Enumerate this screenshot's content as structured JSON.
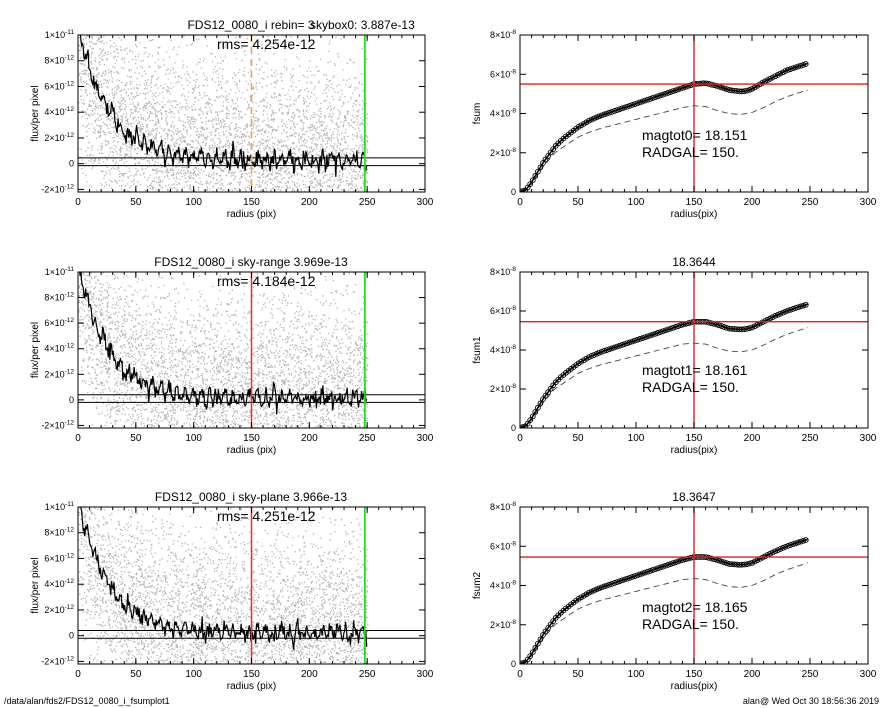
{
  "footer": {
    "path": "/data/alan/fds2/FDS12_0080_i_fsumplot1",
    "stamp": "alan@  Wed Oct 30 18:56:36 2019"
  },
  "colors": {
    "scatter": "#a8a8a8",
    "profile": "#000000",
    "dashed_marker": "#f0a050",
    "radius_marker": "#e03030",
    "outer_marker": "#22dd22",
    "crosshair": "#dd2222",
    "dashed_curve": "#444444"
  },
  "chart_data": [
    {
      "panel": "profile-1",
      "type": "scatter",
      "title_left": "FDS12_0080_i rebin= 3",
      "title_right": "skybox0:  3.887e-13",
      "annotation": "rms= 4.254e-12",
      "xlabel": "radius (pix)",
      "ylabel": "flux/per pixel",
      "xlim": [
        0,
        300
      ],
      "ylim": [
        -2.2e-12,
        1e-11
      ],
      "x_ticks": [
        "0",
        "50",
        "100",
        "150",
        "200",
        "250",
        "300"
      ],
      "y_ticks": [
        {
          "v": -2e-12,
          "m": "-2×10",
          "e": "-12"
        },
        {
          "v": 0,
          "m": "0",
          "e": ""
        },
        {
          "v": 2e-12,
          "m": "2×10",
          "e": "-12"
        },
        {
          "v": 4e-12,
          "m": "4×10",
          "e": "-12"
        },
        {
          "v": 6e-12,
          "m": "6×10",
          "e": "-12"
        },
        {
          "v": 8e-12,
          "m": "8×10",
          "e": "-12"
        },
        {
          "v": 1e-11,
          "m": "1×10",
          "e": "-11"
        }
      ],
      "horizontal_lines": [
        4.5e-13,
        -1.5e-13
      ],
      "marker_radius": 150,
      "marker_style": "dashed",
      "outer_radius": 248,
      "profile": {
        "amplitude": 1.05e-11,
        "scale": 26,
        "floor": 3e-13,
        "x_max": 250
      }
    },
    {
      "panel": "growth-1",
      "type": "line",
      "title_left": "",
      "title_right": "",
      "xlabel": "radius(pix)",
      "ylabel": "fsum",
      "xlim": [
        0,
        300
      ],
      "ylim": [
        0,
        8e-08
      ],
      "x_ticks": [
        "0",
        "50",
        "100",
        "150",
        "200",
        "250",
        "300"
      ],
      "y_ticks": [
        {
          "v": 0,
          "m": "0",
          "e": ""
        },
        {
          "v": 2e-08,
          "m": "2×10",
          "e": "-8"
        },
        {
          "v": 4e-08,
          "m": "4×10",
          "e": "-8"
        },
        {
          "v": 6e-08,
          "m": "6×10",
          "e": "-8"
        },
        {
          "v": 8e-08,
          "m": "8×10",
          "e": "-8"
        }
      ],
      "cross_x": 150,
      "cross_y": 5.5e-08,
      "curve": {
        "x": [
          0,
          5,
          10,
          15,
          20,
          25,
          30,
          35,
          40,
          50,
          60,
          70,
          80,
          90,
          100,
          110,
          120,
          130,
          140,
          150,
          160,
          170,
          180,
          190,
          195,
          200,
          210,
          220,
          230,
          240,
          248
        ],
        "y": [
          0,
          1e-09,
          5e-09,
          1e-08,
          1.5e-08,
          1.9e-08,
          2.3e-08,
          2.6e-08,
          2.85e-08,
          3.3e-08,
          3.65e-08,
          3.9e-08,
          4.1e-08,
          4.3e-08,
          4.5e-08,
          4.7e-08,
          4.9e-08,
          5.1e-08,
          5.3e-08,
          5.5e-08,
          5.55e-08,
          5.4e-08,
          5.2e-08,
          5.12e-08,
          5.15e-08,
          5.25e-08,
          5.6e-08,
          5.9e-08,
          6.2e-08,
          6.4e-08,
          6.55e-08
        ]
      },
      "dashed_curve": {
        "x": [
          0,
          10,
          20,
          30,
          40,
          50,
          60,
          70,
          80,
          90,
          100,
          110,
          120,
          130,
          140,
          150,
          160,
          170,
          180,
          190,
          200,
          210,
          220,
          230,
          240,
          248
        ],
        "y": [
          0,
          4e-09,
          1.3e-08,
          2e-08,
          2.4e-08,
          2.8e-08,
          3.05e-08,
          3.25e-08,
          3.4e-08,
          3.55e-08,
          3.7e-08,
          3.85e-08,
          4e-08,
          4.15e-08,
          4.3e-08,
          4.4e-08,
          4.35e-08,
          4.15e-08,
          4e-08,
          3.95e-08,
          4.05e-08,
          4.3e-08,
          4.6e-08,
          4.85e-08,
          5.05e-08,
          5.2e-08
        ]
      },
      "annotation_1": "magtot0=  18.151",
      "annotation_2": "RADGAL=    150."
    },
    {
      "panel": "profile-2",
      "type": "scatter",
      "title_left": "FDS12_0080_i sky-range  3.969e-13",
      "title_right": "",
      "annotation": "rms= 4.184e-12",
      "xlabel": "radius (pix)",
      "ylabel": "flux/per pixel",
      "xlim": [
        0,
        300
      ],
      "ylim": [
        -2.2e-12,
        1e-11
      ],
      "x_ticks": [
        "0",
        "50",
        "100",
        "150",
        "200",
        "250",
        "300"
      ],
      "y_ticks": [
        {
          "v": -2e-12,
          "m": "-2×10",
          "e": "-12"
        },
        {
          "v": 0,
          "m": "0",
          "e": ""
        },
        {
          "v": 2e-12,
          "m": "2×10",
          "e": "-12"
        },
        {
          "v": 4e-12,
          "m": "4×10",
          "e": "-12"
        },
        {
          "v": 6e-12,
          "m": "6×10",
          "e": "-12"
        },
        {
          "v": 8e-12,
          "m": "8×10",
          "e": "-12"
        },
        {
          "v": 1e-11,
          "m": "1×10",
          "e": "-11"
        }
      ],
      "horizontal_lines": [
        4e-13,
        -2e-13
      ],
      "marker_radius": 150,
      "marker_style": "solid",
      "outer_radius": 248,
      "profile": {
        "amplitude": 1.05e-11,
        "scale": 26,
        "floor": 1e-13,
        "x_max": 250
      }
    },
    {
      "panel": "growth-2",
      "type": "line",
      "title_left": "18.3644",
      "title_right": "",
      "xlabel": "radius(pix)",
      "ylabel": "fsum1",
      "xlim": [
        0,
        300
      ],
      "ylim": [
        0,
        8e-08
      ],
      "x_ticks": [
        "0",
        "50",
        "100",
        "150",
        "200",
        "250",
        "300"
      ],
      "y_ticks": [
        {
          "v": 0,
          "m": "0",
          "e": ""
        },
        {
          "v": 2e-08,
          "m": "2×10",
          "e": "-8"
        },
        {
          "v": 4e-08,
          "m": "4×10",
          "e": "-8"
        },
        {
          "v": 6e-08,
          "m": "6×10",
          "e": "-8"
        },
        {
          "v": 8e-08,
          "m": "8×10",
          "e": "-8"
        }
      ],
      "cross_x": 150,
      "cross_y": 5.45e-08,
      "curve": {
        "x": [
          0,
          5,
          10,
          15,
          20,
          25,
          30,
          35,
          40,
          50,
          60,
          70,
          80,
          90,
          100,
          110,
          120,
          130,
          140,
          150,
          160,
          170,
          180,
          190,
          195,
          200,
          210,
          220,
          230,
          240,
          248
        ],
        "y": [
          0,
          1e-09,
          5e-09,
          1e-08,
          1.5e-08,
          1.9e-08,
          2.3e-08,
          2.6e-08,
          2.85e-08,
          3.3e-08,
          3.65e-08,
          3.9e-08,
          4.1e-08,
          4.3e-08,
          4.5e-08,
          4.7e-08,
          4.9e-08,
          5.1e-08,
          5.3e-08,
          5.45e-08,
          5.45e-08,
          5.3e-08,
          5.1e-08,
          5.05e-08,
          5.08e-08,
          5.15e-08,
          5.45e-08,
          5.75e-08,
          6e-08,
          6.2e-08,
          6.35e-08
        ]
      },
      "dashed_curve": {
        "x": [
          0,
          10,
          20,
          30,
          40,
          50,
          60,
          70,
          80,
          90,
          100,
          110,
          120,
          130,
          140,
          150,
          160,
          170,
          180,
          190,
          200,
          210,
          220,
          230,
          240,
          248
        ],
        "y": [
          0,
          4e-09,
          1.3e-08,
          2e-08,
          2.4e-08,
          2.8e-08,
          3.05e-08,
          3.25e-08,
          3.4e-08,
          3.55e-08,
          3.7e-08,
          3.85e-08,
          4e-08,
          4.15e-08,
          4.3e-08,
          4.35e-08,
          4.3e-08,
          4.1e-08,
          3.95e-08,
          3.9e-08,
          4e-08,
          4.25e-08,
          4.55e-08,
          4.8e-08,
          5e-08,
          5.15e-08
        ]
      },
      "annotation_1": "magtot1=  18.161",
      "annotation_2": "RADGAL=    150."
    },
    {
      "panel": "profile-3",
      "type": "scatter",
      "title_left": "FDS12_0080_i sky-plane  3.966e-13",
      "title_right": "",
      "annotation": "rms= 4.251e-12",
      "xlabel": "radius (pix)",
      "ylabel": "flux/per pixel",
      "xlim": [
        0,
        300
      ],
      "ylim": [
        -2.2e-12,
        1e-11
      ],
      "x_ticks": [
        "0",
        "50",
        "100",
        "150",
        "200",
        "250",
        "300"
      ],
      "y_ticks": [
        {
          "v": -2e-12,
          "m": "-2×10",
          "e": "-12"
        },
        {
          "v": 0,
          "m": "0",
          "e": ""
        },
        {
          "v": 2e-12,
          "m": "2×10",
          "e": "-12"
        },
        {
          "v": 4e-12,
          "m": "4×10",
          "e": "-12"
        },
        {
          "v": 6e-12,
          "m": "6×10",
          "e": "-12"
        },
        {
          "v": 8e-12,
          "m": "8×10",
          "e": "-12"
        },
        {
          "v": 1e-11,
          "m": "1×10",
          "e": "-11"
        }
      ],
      "horizontal_lines": [
        4e-13,
        -2e-13
      ],
      "marker_radius": 150,
      "marker_style": "solid",
      "outer_radius": 248,
      "profile": {
        "amplitude": 1.05e-11,
        "scale": 26,
        "floor": 2e-13,
        "x_max": 250
      }
    },
    {
      "panel": "growth-3",
      "type": "line",
      "title_left": "18.3647",
      "title_right": "",
      "xlabel": "radius(pix)",
      "ylabel": "fsum2",
      "xlim": [
        0,
        300
      ],
      "ylim": [
        0,
        8e-08
      ],
      "x_ticks": [
        "0",
        "50",
        "100",
        "150",
        "200",
        "250",
        "300"
      ],
      "y_ticks": [
        {
          "v": 0,
          "m": "0",
          "e": ""
        },
        {
          "v": 2e-08,
          "m": "2×10",
          "e": "-8"
        },
        {
          "v": 4e-08,
          "m": "4×10",
          "e": "-8"
        },
        {
          "v": 6e-08,
          "m": "6×10",
          "e": "-8"
        },
        {
          "v": 8e-08,
          "m": "8×10",
          "e": "-8"
        }
      ],
      "cross_x": 150,
      "cross_y": 5.45e-08,
      "curve": {
        "x": [
          0,
          5,
          10,
          15,
          20,
          25,
          30,
          35,
          40,
          50,
          60,
          70,
          80,
          90,
          100,
          110,
          120,
          130,
          140,
          150,
          160,
          170,
          180,
          190,
          195,
          200,
          210,
          220,
          230,
          240,
          248
        ],
        "y": [
          0,
          1e-09,
          5e-09,
          1e-08,
          1.5e-08,
          1.9e-08,
          2.3e-08,
          2.6e-08,
          2.85e-08,
          3.3e-08,
          3.65e-08,
          3.9e-08,
          4.1e-08,
          4.3e-08,
          4.5e-08,
          4.7e-08,
          4.9e-08,
          5.1e-08,
          5.3e-08,
          5.45e-08,
          5.45e-08,
          5.3e-08,
          5.1e-08,
          5.05e-08,
          5.08e-08,
          5.15e-08,
          5.45e-08,
          5.75e-08,
          6e-08,
          6.2e-08,
          6.35e-08
        ]
      },
      "dashed_curve": {
        "x": [
          0,
          10,
          20,
          30,
          40,
          50,
          60,
          70,
          80,
          90,
          100,
          110,
          120,
          130,
          140,
          150,
          160,
          170,
          180,
          190,
          200,
          210,
          220,
          230,
          240,
          248
        ],
        "y": [
          0,
          4e-09,
          1.3e-08,
          2e-08,
          2.4e-08,
          2.8e-08,
          3.05e-08,
          3.25e-08,
          3.4e-08,
          3.55e-08,
          3.7e-08,
          3.85e-08,
          4e-08,
          4.15e-08,
          4.3e-08,
          4.35e-08,
          4.3e-08,
          4.1e-08,
          3.95e-08,
          3.9e-08,
          4e-08,
          4.25e-08,
          4.55e-08,
          4.8e-08,
          5e-08,
          5.15e-08
        ]
      },
      "annotation_1": "magtot2=  18.165",
      "annotation_2": "RADGAL=    150."
    }
  ]
}
